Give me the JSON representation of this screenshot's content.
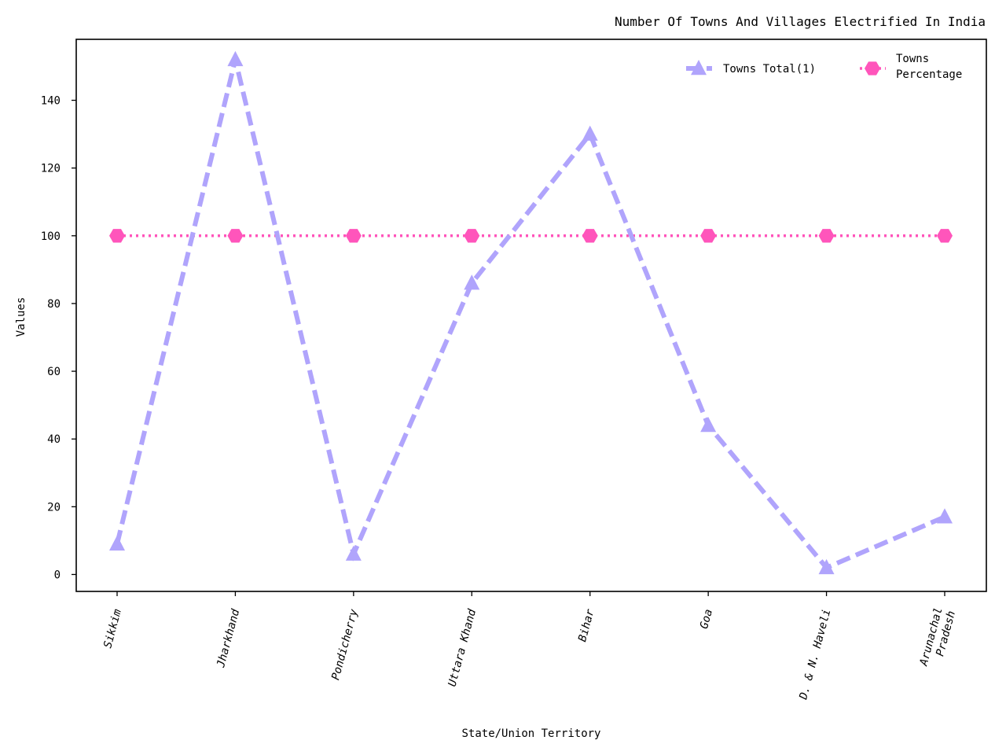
{
  "chart_data": {
    "type": "line",
    "title": "Number Of Towns And Villages Electrified In India",
    "xlabel": "State/Union Territory",
    "ylabel": "Values",
    "categories": [
      "Sikkim",
      "Jharkhand",
      "Pondicherry",
      "Uttara Khand",
      "Bihar",
      "Goa",
      "D. & N. Haveli",
      "Arunachal\nPradesh"
    ],
    "ylim": [
      -5,
      158
    ],
    "yticks": [
      0,
      20,
      40,
      60,
      80,
      100,
      120,
      140
    ],
    "grid": false,
    "legend_position": "top-right",
    "series": [
      {
        "name": "Towns Total(1)",
        "values": [
          9,
          152,
          6,
          86,
          130,
          44,
          2,
          17
        ],
        "color": "#b0a4fc",
        "line_style": "dashed",
        "marker": "triangle"
      },
      {
        "name": "Towns\nPercentage",
        "values": [
          100,
          100,
          100,
          100,
          100,
          100,
          100,
          100
        ],
        "color": "#ff55bb",
        "line_style": "dotted",
        "marker": "hexagon"
      }
    ]
  }
}
